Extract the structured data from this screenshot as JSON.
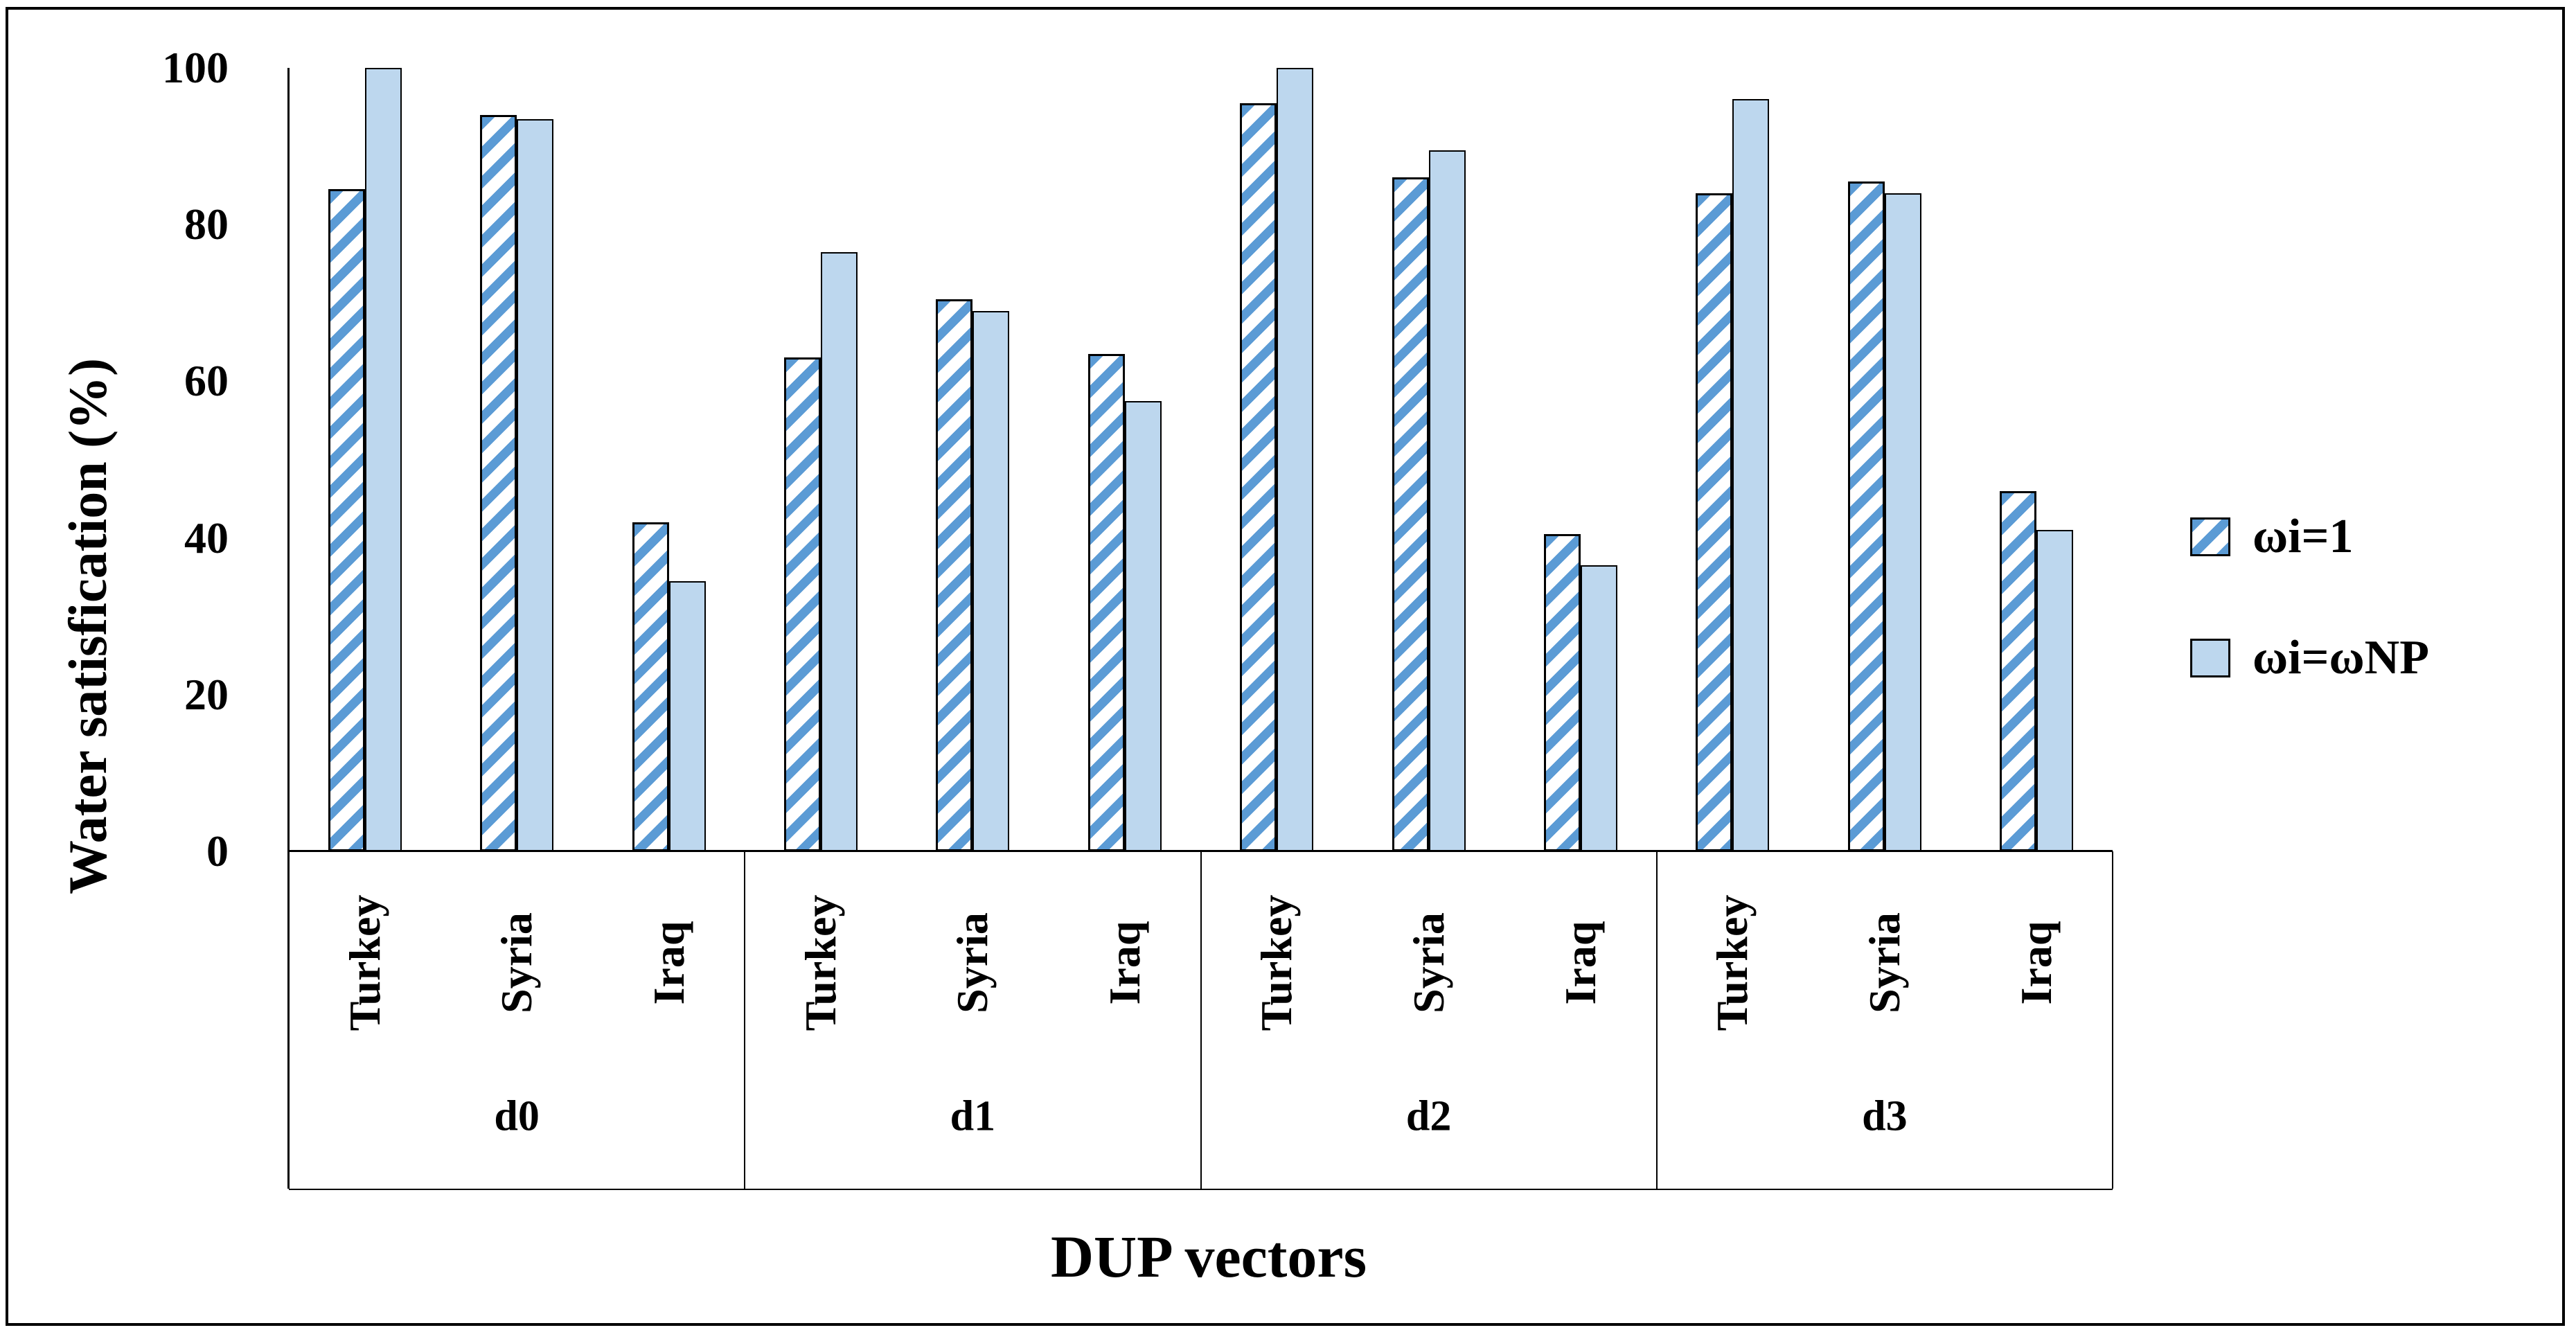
{
  "figure": {
    "y_axis": {
      "title": "Water satisfication (%)",
      "tick_labels": [
        "0",
        "20",
        "40",
        "60",
        "80",
        "100"
      ]
    },
    "x_axis": {
      "title": "DUP vectors"
    },
    "legend": {
      "items": [
        {
          "label": "ωi=1",
          "pattern": "hatched"
        },
        {
          "label": "ωi=ωNP",
          "pattern": "solid"
        }
      ]
    },
    "colors": {
      "hatch_stripe": "#5B9BD5",
      "solid_fill": "#BDD7EE",
      "bar_border": "#000000",
      "axis_line": "#000000",
      "text": "#000000",
      "background": "#FFFFFF"
    }
  },
  "chart_data": {
    "type": "bar",
    "title": "",
    "xlabel": "DUP vectors",
    "ylabel": "Water satisfication (%)",
    "ylim": [
      0,
      100
    ],
    "yticks": [
      0,
      20,
      40,
      60,
      80,
      100
    ],
    "grid": false,
    "legend_position": "right",
    "group_labels": [
      "d0",
      "d1",
      "d2",
      "d3"
    ],
    "categories_per_group": [
      "Turkey",
      "Syria",
      "Iraq"
    ],
    "x": [
      "d0-Turkey",
      "d0-Syria",
      "d0-Iraq",
      "d1-Turkey",
      "d1-Syria",
      "d1-Iraq",
      "d2-Turkey",
      "d2-Syria",
      "d2-Iraq",
      "d3-Turkey",
      "d3-Syria",
      "d3-Iraq"
    ],
    "series": [
      {
        "name": "ωi=1",
        "pattern": "hatched",
        "values": [
          84.5,
          94,
          42,
          63,
          70.5,
          63.5,
          95.5,
          86,
          40.5,
          84,
          85.5,
          46
        ]
      },
      {
        "name": "ωi=ωNP",
        "pattern": "solid",
        "values": [
          100,
          93.5,
          34.5,
          76.5,
          69,
          57.5,
          100,
          89.5,
          36.5,
          96,
          84,
          41
        ]
      }
    ]
  }
}
